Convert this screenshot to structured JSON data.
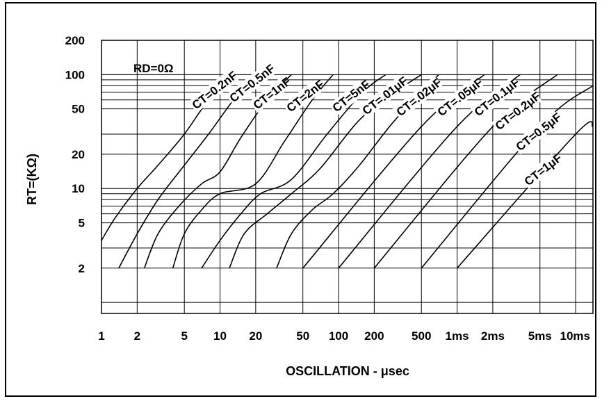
{
  "chart_data": {
    "type": "line",
    "title": "",
    "xlabel": "OSCILLATION - μsec",
    "ylabel": "RT=(KΩ)",
    "x_scale": "log",
    "y_scale": "log",
    "x_unit": "μsec",
    "y_unit": "kΩ",
    "xlim": [
      1,
      14000
    ],
    "ylim": [
      0.8,
      200
    ],
    "x_ticks": [
      {
        "value": 1,
        "label": "1"
      },
      {
        "value": 2,
        "label": "2"
      },
      {
        "value": 5,
        "label": "5"
      },
      {
        "value": 10,
        "label": "10"
      },
      {
        "value": 20,
        "label": "20"
      },
      {
        "value": 50,
        "label": "50"
      },
      {
        "value": 100,
        "label": "100"
      },
      {
        "value": 200,
        "label": "200"
      },
      {
        "value": 500,
        "label": "500"
      },
      {
        "value": 1000,
        "label": "1ms"
      },
      {
        "value": 2000,
        "label": "2ms"
      },
      {
        "value": 5000,
        "label": "5ms"
      },
      {
        "value": 10000,
        "label": "10ms"
      }
    ],
    "y_ticks": [
      {
        "value": 200,
        "label": "200"
      },
      {
        "value": 100,
        "label": "100"
      },
      {
        "value": 50,
        "label": "50"
      },
      {
        "value": 20,
        "label": "20"
      },
      {
        "value": 10,
        "label": "10"
      },
      {
        "value": 5,
        "label": "5"
      },
      {
        "value": 2,
        "label": "2"
      }
    ],
    "grid": true,
    "annotation": "RD=0Ω",
    "series": [
      {
        "name": "CT=0.2nF",
        "points": [
          [
            1.0,
            3.5
          ],
          [
            1.3,
            5.5
          ],
          [
            2.0,
            10
          ],
          [
            3.0,
            16
          ],
          [
            5.0,
            30
          ],
          [
            8.0,
            60
          ],
          [
            13,
            100
          ]
        ]
      },
      {
        "name": "CT=0.5nF",
        "points": [
          [
            1.4,
            2
          ],
          [
            2.0,
            4
          ],
          [
            3.0,
            8
          ],
          [
            5.0,
            16
          ],
          [
            8.0,
            30
          ],
          [
            13,
            60
          ],
          [
            20,
            100
          ]
        ]
      },
      {
        "name": "CT=1nF",
        "points": [
          [
            2.3,
            2
          ],
          [
            3.0,
            4
          ],
          [
            4.5,
            7
          ],
          [
            7.0,
            11
          ],
          [
            10,
            14
          ],
          [
            15,
            28
          ],
          [
            25,
            60
          ],
          [
            40,
            100
          ]
        ]
      },
      {
        "name": "CT=2nF",
        "points": [
          [
            4.0,
            2
          ],
          [
            5.0,
            4
          ],
          [
            7.0,
            6.5
          ],
          [
            10,
            9
          ],
          [
            20,
            11
          ],
          [
            35,
            26
          ],
          [
            60,
            60
          ],
          [
            90,
            100
          ]
        ]
      },
      {
        "name": "CT=5nF",
        "points": [
          [
            7.0,
            2
          ],
          [
            10,
            3.5
          ],
          [
            15,
            6
          ],
          [
            22,
            9
          ],
          [
            40,
            12
          ],
          [
            80,
            30
          ],
          [
            160,
            70
          ],
          [
            250,
            100
          ]
        ]
      },
      {
        "name": "CT=.01μF",
        "points": [
          [
            12,
            2
          ],
          [
            16,
            4
          ],
          [
            25,
            6
          ],
          [
            40,
            9
          ],
          [
            70,
            15
          ],
          [
            150,
            40
          ],
          [
            300,
            70
          ],
          [
            500,
            100
          ]
        ]
      },
      {
        "name": "CT=.02μF",
        "points": [
          [
            30,
            2
          ],
          [
            40,
            4
          ],
          [
            60,
            6.5
          ],
          [
            90,
            9
          ],
          [
            150,
            16
          ],
          [
            300,
            40
          ],
          [
            700,
            100
          ]
        ]
      },
      {
        "name": "CT=.05μF",
        "points": [
          [
            50,
            2
          ],
          [
            500,
            35
          ],
          [
            1700,
            100
          ]
        ]
      },
      {
        "name": "CT=0.1μF",
        "points": [
          [
            100,
            2
          ],
          [
            1000,
            35
          ],
          [
            3400,
            100
          ]
        ]
      },
      {
        "name": "CT=0.2μF",
        "points": [
          [
            200,
            2
          ],
          [
            2000,
            35
          ],
          [
            7000,
            100
          ]
        ]
      },
      {
        "name": "CT=0.5μF",
        "points": [
          [
            500,
            2
          ],
          [
            5000,
            35
          ],
          [
            14000,
            80
          ]
        ]
      },
      {
        "name": "CT=1μF",
        "points": [
          [
            1000,
            2
          ],
          [
            10000,
            30
          ],
          [
            14000,
            35
          ]
        ]
      }
    ]
  }
}
